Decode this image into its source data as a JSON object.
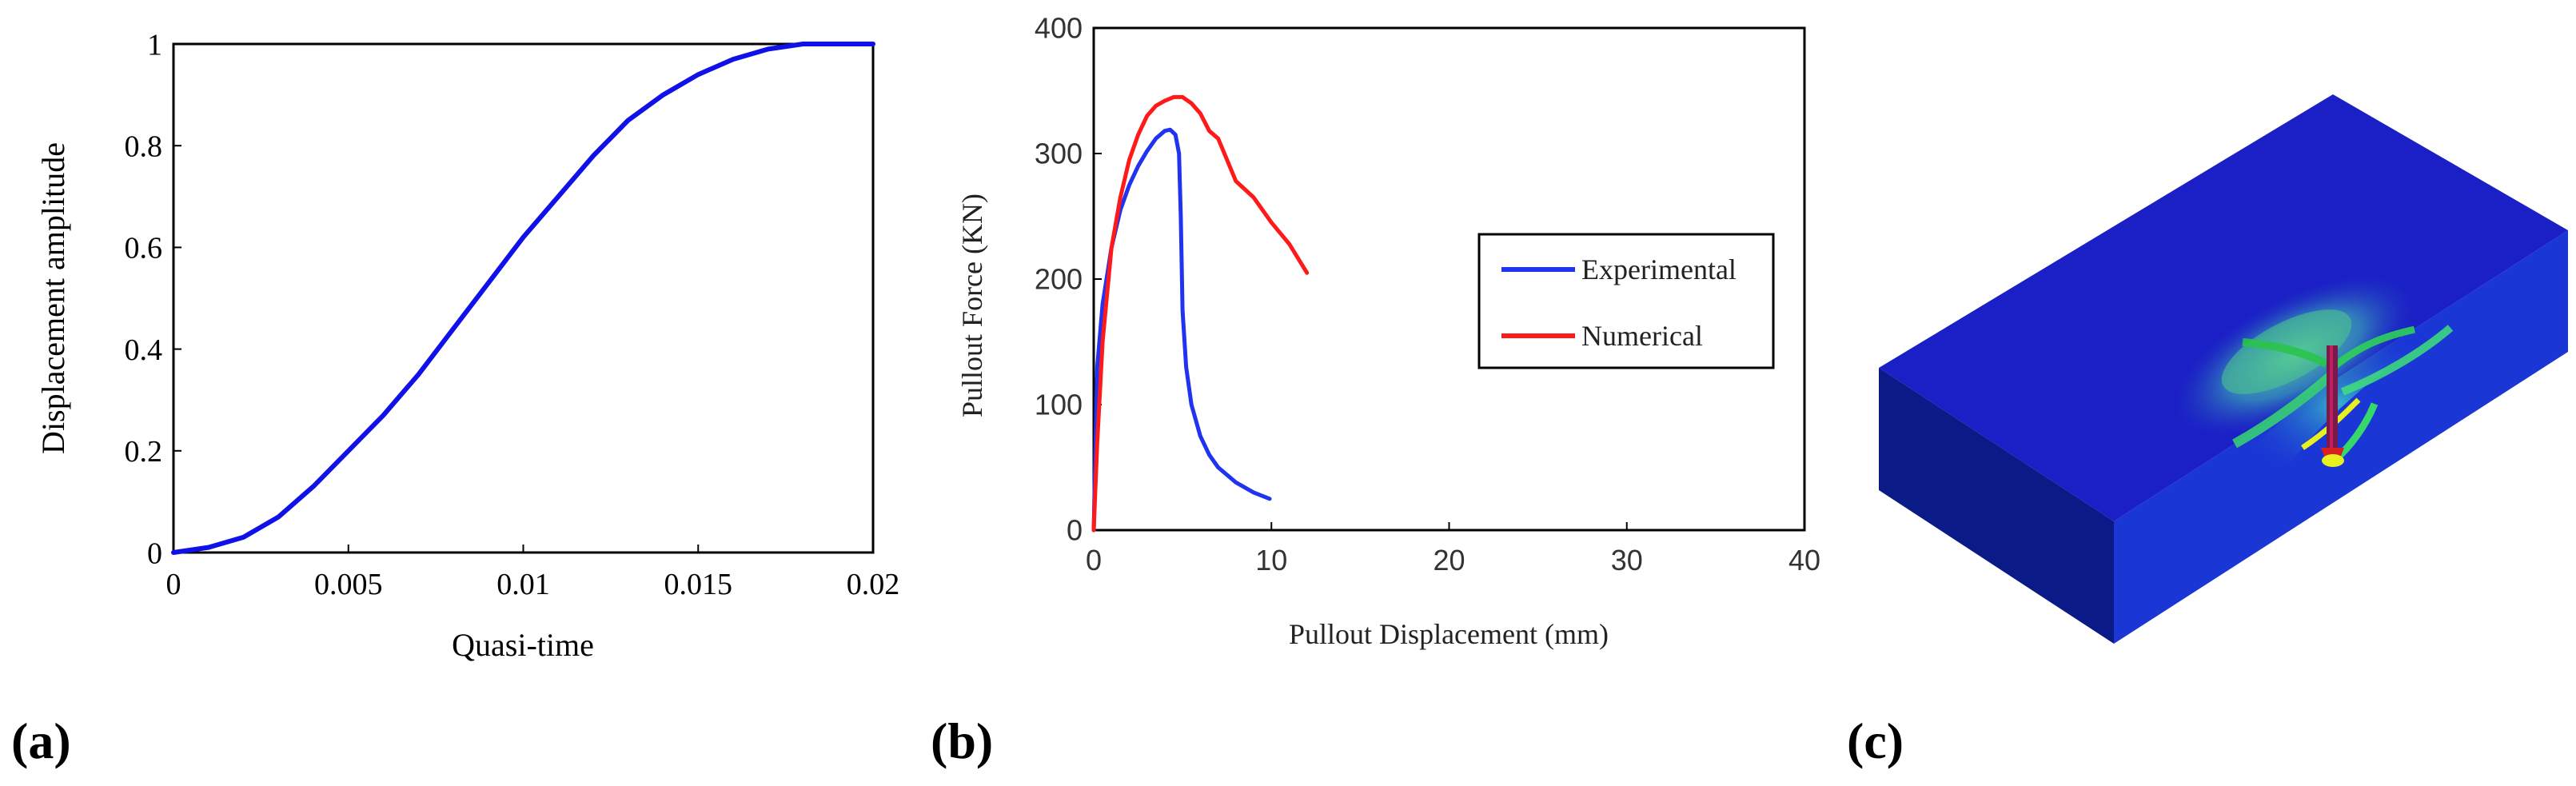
{
  "panels": {
    "a": {
      "label": "(a)"
    },
    "b": {
      "label": "(b)"
    },
    "c": {
      "label": "(c)"
    }
  },
  "colors": {
    "blue_curve": "#1010e8",
    "experimental": "#1f33f0",
    "numerical": "#ff1a1a",
    "model_top": "#1a1ec8",
    "model_front": "#1430c9",
    "model_side": "#0a1a8a",
    "model_cut": "#0d2cff",
    "contour_green": "#2ecc55",
    "contour_yellow": "#e8f020",
    "contour_red": "#d82020",
    "contour_cyan": "#27c6d6"
  },
  "chart_data": [
    {
      "id": "a",
      "type": "line",
      "title": "",
      "xlabel": "Quasi-time",
      "ylabel": "Displacement amplitude",
      "xlim": [
        0,
        0.02
      ],
      "ylim": [
        0,
        1
      ],
      "xticks": [
        0,
        0.005,
        0.01,
        0.015,
        0.02
      ],
      "xtick_labels": [
        "0",
        "0.005",
        "0.01",
        "0.015",
        "0.02"
      ],
      "yticks": [
        0,
        0.2,
        0.4,
        0.6,
        0.8,
        1
      ],
      "ytick_labels": [
        "0",
        "0.2",
        "0.4",
        "0.6",
        "0.8",
        "1"
      ],
      "series": [
        {
          "name": "Displacement amplitude",
          "x": [
            0,
            0.001,
            0.002,
            0.003,
            0.004,
            0.005,
            0.006,
            0.007,
            0.008,
            0.009,
            0.01,
            0.011,
            0.012,
            0.013,
            0.014,
            0.015,
            0.016,
            0.017,
            0.018,
            0.019,
            0.02
          ],
          "y": [
            0,
            0.01,
            0.03,
            0.07,
            0.13,
            0.2,
            0.27,
            0.35,
            0.44,
            0.53,
            0.62,
            0.7,
            0.78,
            0.85,
            0.9,
            0.94,
            0.97,
            0.99,
            1.0,
            1.0,
            1.0
          ]
        }
      ]
    },
    {
      "id": "b",
      "type": "line",
      "title": "",
      "xlabel": "Pullout Displacement (mm)",
      "ylabel": "Pullout Force (KN)",
      "xlim": [
        0,
        40
      ],
      "ylim": [
        0,
        400
      ],
      "xticks": [
        0,
        10,
        20,
        30,
        40
      ],
      "xtick_labels": [
        "0",
        "10",
        "20",
        "30",
        "40"
      ],
      "yticks": [
        0,
        100,
        200,
        300,
        400
      ],
      "ytick_labels": [
        "0",
        "100",
        "200",
        "300",
        "400"
      ],
      "legend_position": "center-right",
      "series": [
        {
          "name": "Experimental",
          "x": [
            0,
            0.2,
            0.5,
            1.0,
            1.5,
            2.0,
            2.5,
            3.0,
            3.5,
            4.0,
            4.3,
            4.6,
            4.8,
            4.9,
            5.0,
            5.2,
            5.5,
            6.0,
            6.5,
            7.0,
            8.0,
            9.0,
            9.9
          ],
          "y": [
            0,
            130,
            180,
            225,
            255,
            275,
            290,
            302,
            312,
            318,
            319,
            315,
            300,
            250,
            175,
            130,
            100,
            75,
            60,
            50,
            38,
            30,
            25
          ]
        },
        {
          "name": "Numerical",
          "x": [
            0,
            0.2,
            0.5,
            1.0,
            1.5,
            2.0,
            2.5,
            3.0,
            3.5,
            4.0,
            4.5,
            5.0,
            5.5,
            6.0,
            6.5,
            7.0,
            7.5,
            8.0,
            9.0,
            10.0,
            11.0,
            12.0
          ],
          "y": [
            0,
            70,
            150,
            225,
            265,
            295,
            315,
            330,
            338,
            342,
            345,
            345,
            340,
            332,
            318,
            312,
            295,
            278,
            265,
            245,
            228,
            205
          ]
        }
      ]
    }
  ]
}
